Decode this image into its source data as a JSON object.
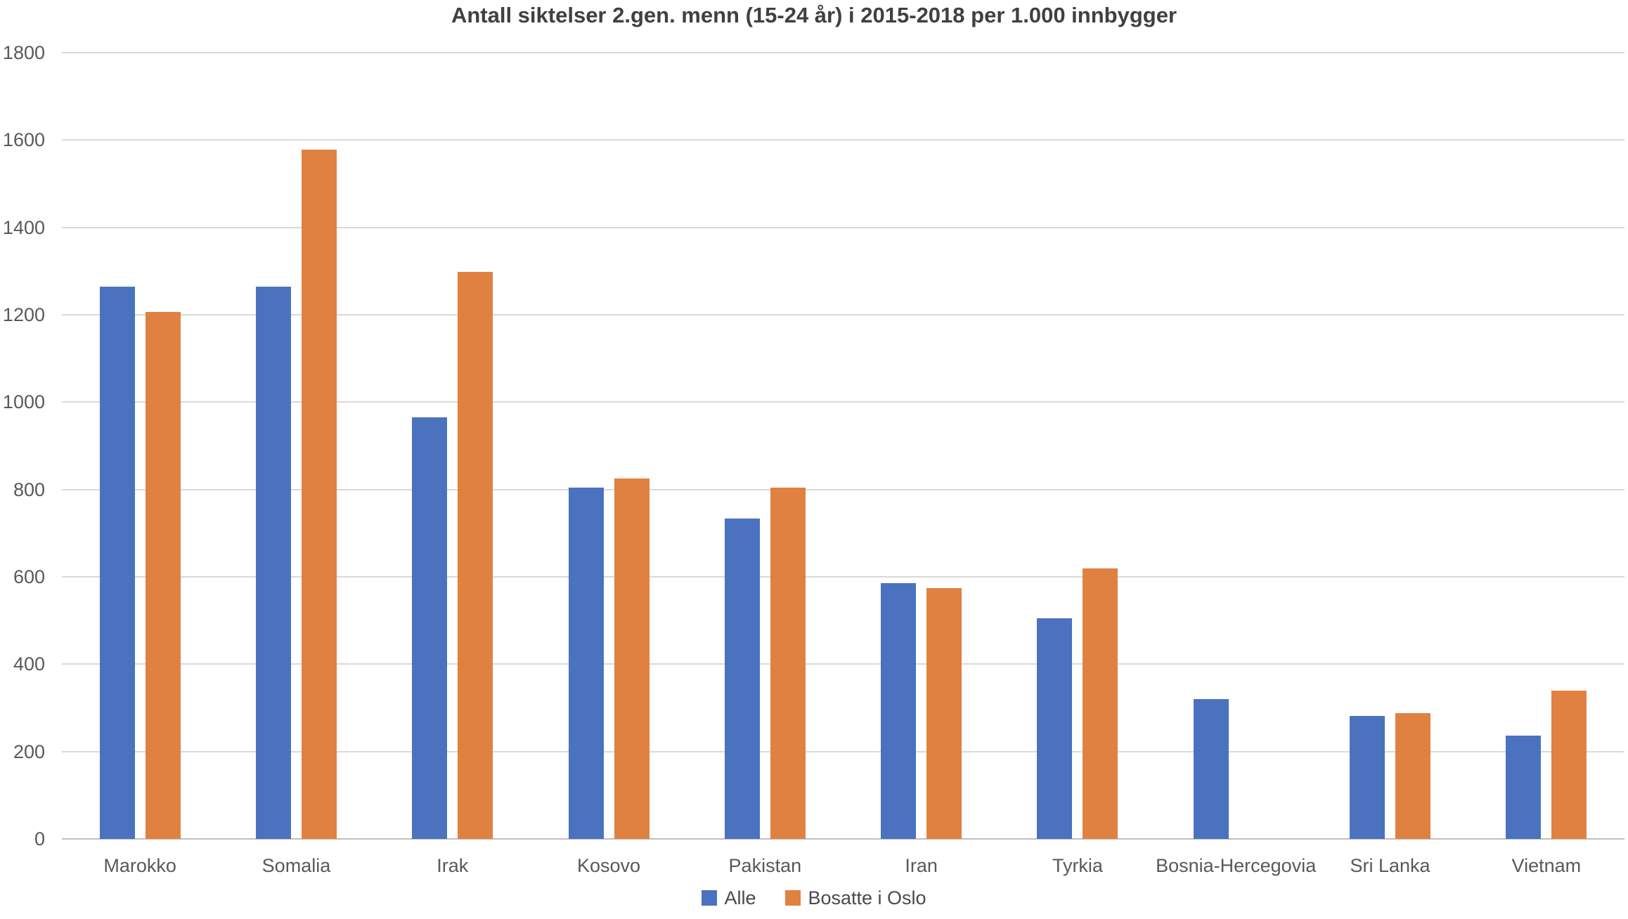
{
  "chart_data": {
    "type": "bar",
    "title": "Antall siktelser 2.gen. menn (15-24 år) i 2015-2018 per 1.000 innbygger",
    "categories": [
      "Marokko",
      "Somalia",
      "Irak",
      "Kosovo",
      "Pakistan",
      "Iran",
      "Tyrkia",
      "Bosnia-Hercegovia",
      "Sri Lanka",
      "Vietnam"
    ],
    "series": [
      {
        "name": "Alle",
        "color": "#4B72BE",
        "values": [
          1265,
          1265,
          965,
          805,
          734,
          585,
          505,
          320,
          281,
          237
        ]
      },
      {
        "name": "Bosatte i Oslo",
        "color": "#E08142",
        "values": [
          1207,
          1578,
          1298,
          826,
          805,
          575,
          620,
          null,
          288,
          340
        ]
      }
    ],
    "y_axis": {
      "min": 0,
      "max": 1800,
      "step": 200,
      "tick_labels": [
        "0",
        "200",
        "400",
        "600",
        "800",
        "1000",
        "1200",
        "1400",
        "1600",
        "1800"
      ]
    },
    "grid": true,
    "legend_position": "bottom",
    "colors": {
      "grid": "#D9D9D9",
      "axis": "#BFBFBF",
      "title_text": "#404040",
      "axis_text": "#595959",
      "legend_text": "#4A4A4A",
      "background": "#FFFFFF"
    }
  }
}
